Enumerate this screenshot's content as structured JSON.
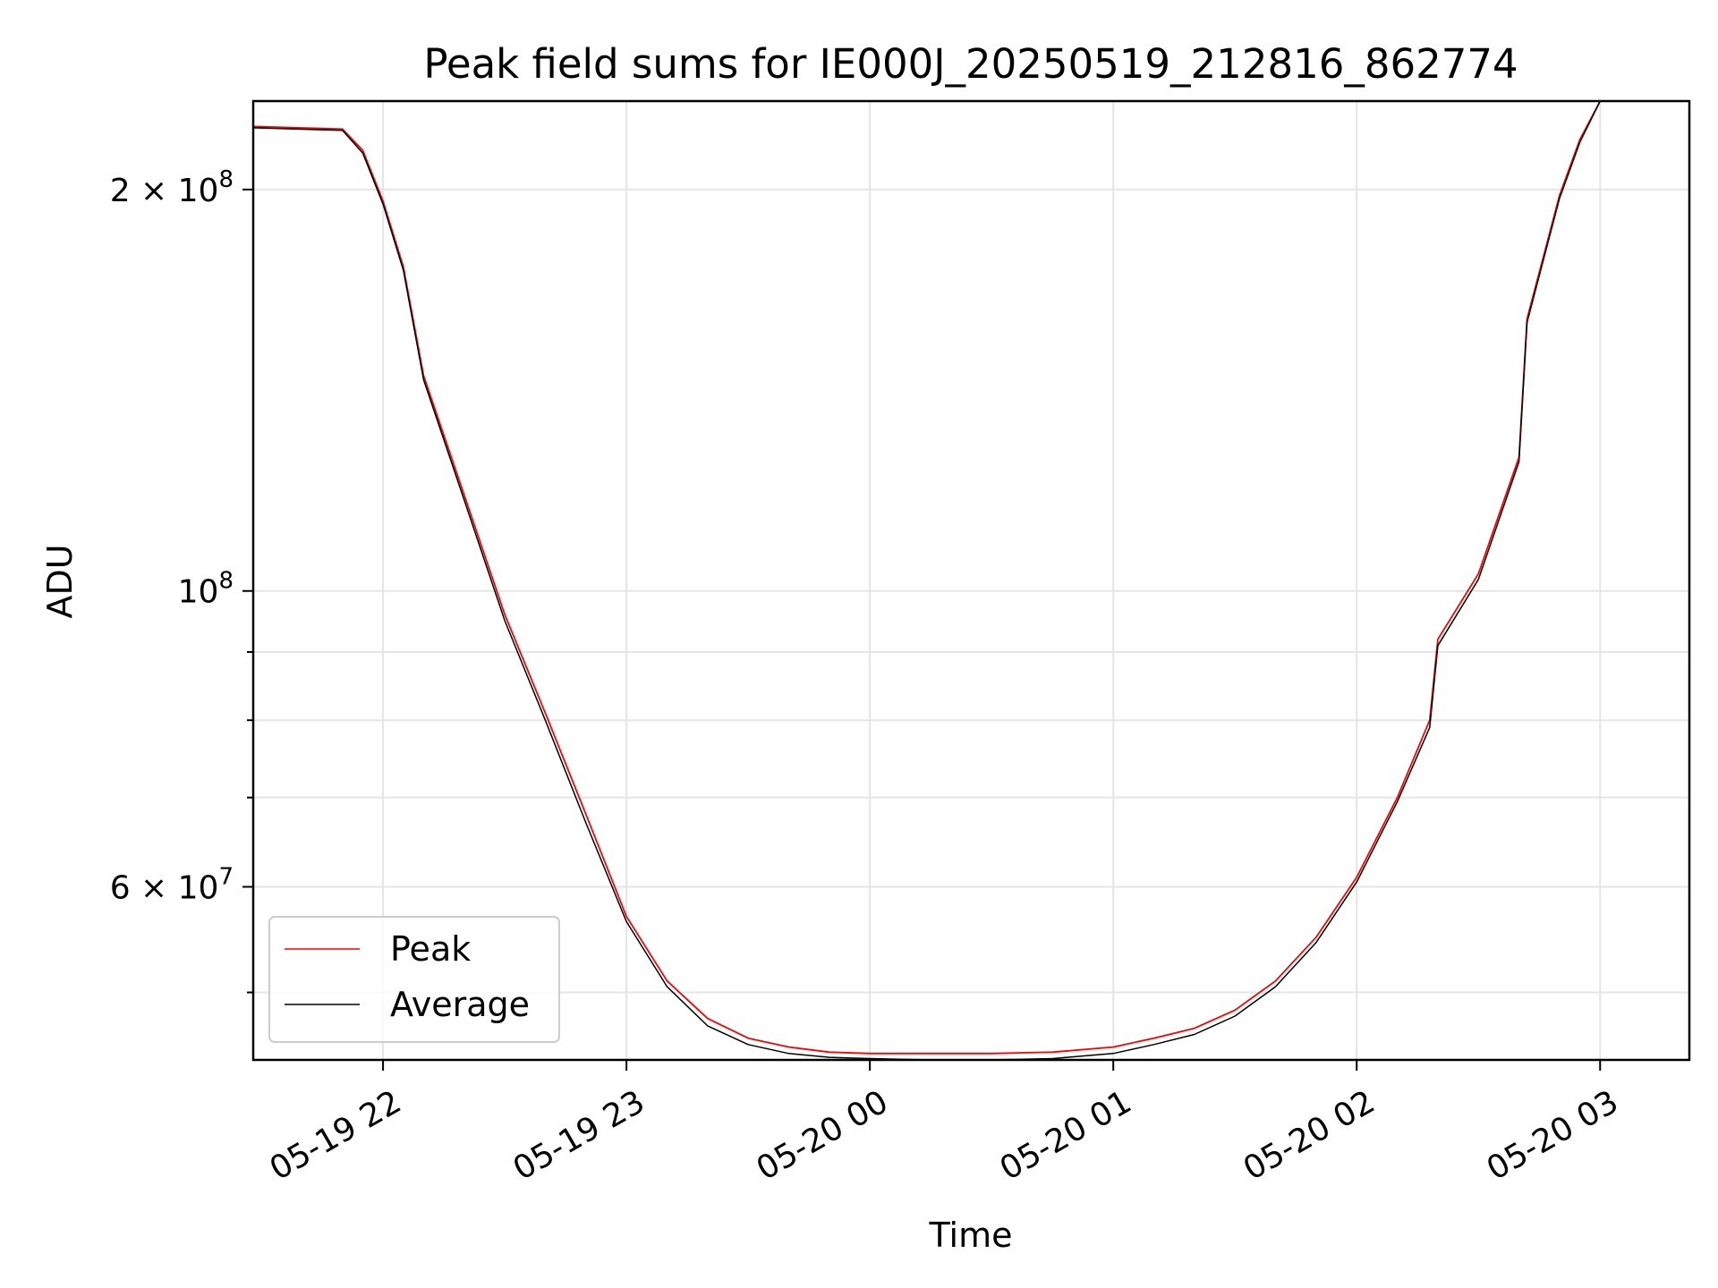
{
  "chart_data": {
    "type": "line",
    "title": "Peak field sums for IE000J_20250519_212816_862774",
    "xlabel": "Time",
    "ylabel": "ADU",
    "yscale": "log",
    "grid": true,
    "legend_position": "lower-left",
    "ylim": [
      44500000,
      233000000
    ],
    "xlim": [
      "2025-05-19 21:28",
      "2025-05-20 03:22"
    ],
    "x_ticks": [
      {
        "value": "2025-05-19 22:00",
        "label": "05-19 22"
      },
      {
        "value": "2025-05-19 23:00",
        "label": "05-19 23"
      },
      {
        "value": "2025-05-20 00:00",
        "label": "05-20 00"
      },
      {
        "value": "2025-05-20 01:00",
        "label": "05-20 01"
      },
      {
        "value": "2025-05-20 02:00",
        "label": "05-20 02"
      },
      {
        "value": "2025-05-20 03:00",
        "label": "05-20 03"
      }
    ],
    "y_ticks": [
      {
        "value": 200000000,
        "label": "2 × 10⁸",
        "mantissa": "2 × 10",
        "exp": "8"
      },
      {
        "value": 100000000,
        "label": "10⁸",
        "mantissa": "10",
        "exp": "8"
      },
      {
        "value": 60000000,
        "label": "6 × 10⁷",
        "mantissa": "6 × 10",
        "exp": "7"
      }
    ],
    "y_minor_ticks": [
      50000000,
      70000000,
      80000000,
      90000000
    ],
    "series": [
      {
        "name": "Peak",
        "color": "#ff0000",
        "x": [
          "2025-05-19 21:28",
          "2025-05-19 21:50",
          "2025-05-19 21:55",
          "2025-05-19 22:00",
          "2025-05-19 22:05",
          "2025-05-19 22:10",
          "2025-05-19 22:20",
          "2025-05-19 22:30",
          "2025-05-19 22:40",
          "2025-05-19 22:50",
          "2025-05-19 23:00",
          "2025-05-19 23:10",
          "2025-05-19 23:20",
          "2025-05-19 23:30",
          "2025-05-19 23:40",
          "2025-05-19 23:50",
          "2025-05-20 00:00",
          "2025-05-20 00:15",
          "2025-05-20 00:30",
          "2025-05-20 00:45",
          "2025-05-20 01:00",
          "2025-05-20 01:10",
          "2025-05-20 01:20",
          "2025-05-20 01:30",
          "2025-05-20 01:40",
          "2025-05-20 01:50",
          "2025-05-20 02:00",
          "2025-05-20 02:10",
          "2025-05-20 02:18",
          "2025-05-20 02:20",
          "2025-05-20 02:30",
          "2025-05-20 02:40",
          "2025-05-20 02:42",
          "2025-05-20 02:50",
          "2025-05-20 02:55",
          "2025-05-20 03:00"
        ],
        "y": [
          223000000,
          222000000,
          214000000,
          196000000,
          175000000,
          145000000,
          118000000,
          96000000,
          81000000,
          68000000,
          57000000,
          51000000,
          47800000,
          46200000,
          45500000,
          45100000,
          45000000,
          45000000,
          45000000,
          45100000,
          45500000,
          46200000,
          47000000,
          48500000,
          51000000,
          55000000,
          61000000,
          70000000,
          80000000,
          92000000,
          103000000,
          126000000,
          160000000,
          198000000,
          218000000,
          233000000
        ]
      },
      {
        "name": "Average",
        "color": "#000000",
        "x": [
          "2025-05-19 21:28",
          "2025-05-19 21:50",
          "2025-05-19 21:55",
          "2025-05-19 22:00",
          "2025-05-19 22:05",
          "2025-05-19 22:10",
          "2025-05-19 22:20",
          "2025-05-19 22:30",
          "2025-05-19 22:40",
          "2025-05-19 22:50",
          "2025-05-19 23:00",
          "2025-05-19 23:10",
          "2025-05-19 23:20",
          "2025-05-19 23:30",
          "2025-05-19 23:40",
          "2025-05-19 23:50",
          "2025-05-20 00:00",
          "2025-05-20 00:15",
          "2025-05-20 00:30",
          "2025-05-20 00:45",
          "2025-05-20 01:00",
          "2025-05-20 01:10",
          "2025-05-20 01:20",
          "2025-05-20 01:30",
          "2025-05-20 01:40",
          "2025-05-20 01:50",
          "2025-05-20 02:00",
          "2025-05-20 02:10",
          "2025-05-20 02:18",
          "2025-05-20 02:20",
          "2025-05-20 02:30",
          "2025-05-20 02:40",
          "2025-05-20 02:42",
          "2025-05-20 02:50",
          "2025-05-20 02:55",
          "2025-05-20 03:00"
        ],
        "y": [
          222500000,
          221500000,
          213000000,
          195000000,
          174000000,
          144000000,
          117000000,
          95000000,
          80000000,
          67000000,
          56500000,
          50500000,
          47200000,
          45700000,
          45000000,
          44700000,
          44600000,
          44500000,
          44500000,
          44600000,
          45000000,
          45700000,
          46500000,
          48000000,
          50500000,
          54500000,
          60500000,
          69500000,
          79000000,
          91000000,
          102000000,
          125000000,
          159000000,
          197000000,
          217000000,
          233000000
        ]
      }
    ]
  }
}
